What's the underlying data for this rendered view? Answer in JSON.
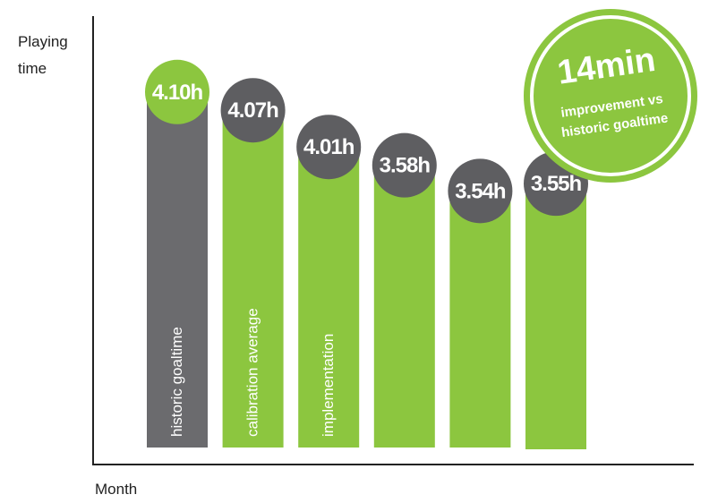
{
  "chart_data": {
    "type": "bar",
    "xlabel": "Month",
    "ylabel_lines": [
      "Playing",
      "time"
    ],
    "categories": [
      "historic goaltime",
      "calibration average",
      "implementation",
      "",
      "",
      ""
    ],
    "values": [
      4.17,
      4.12,
      4.02,
      3.97,
      3.9,
      3.92
    ],
    "value_labels": [
      "4.10h",
      "4.07h",
      "4.01h",
      "3.58h",
      "3.54h",
      "3.55h"
    ],
    "ylim": [
      3.2,
      4.25
    ],
    "bar_colors": [
      "#6b6b6e",
      "#8cc63f",
      "#8cc63f",
      "#8cc63f",
      "#8cc63f",
      "#8cc63f"
    ],
    "bubble_colors": [
      "#8cc63f",
      "#5e5e61",
      "#5e5e61",
      "#5e5e61",
      "#5e5e61",
      "#5e5e61"
    ],
    "grid": false,
    "annotation": {
      "big": "14min",
      "line1": "improvement vs",
      "line2": "historic goaltime",
      "color": "#8cc63f"
    }
  }
}
